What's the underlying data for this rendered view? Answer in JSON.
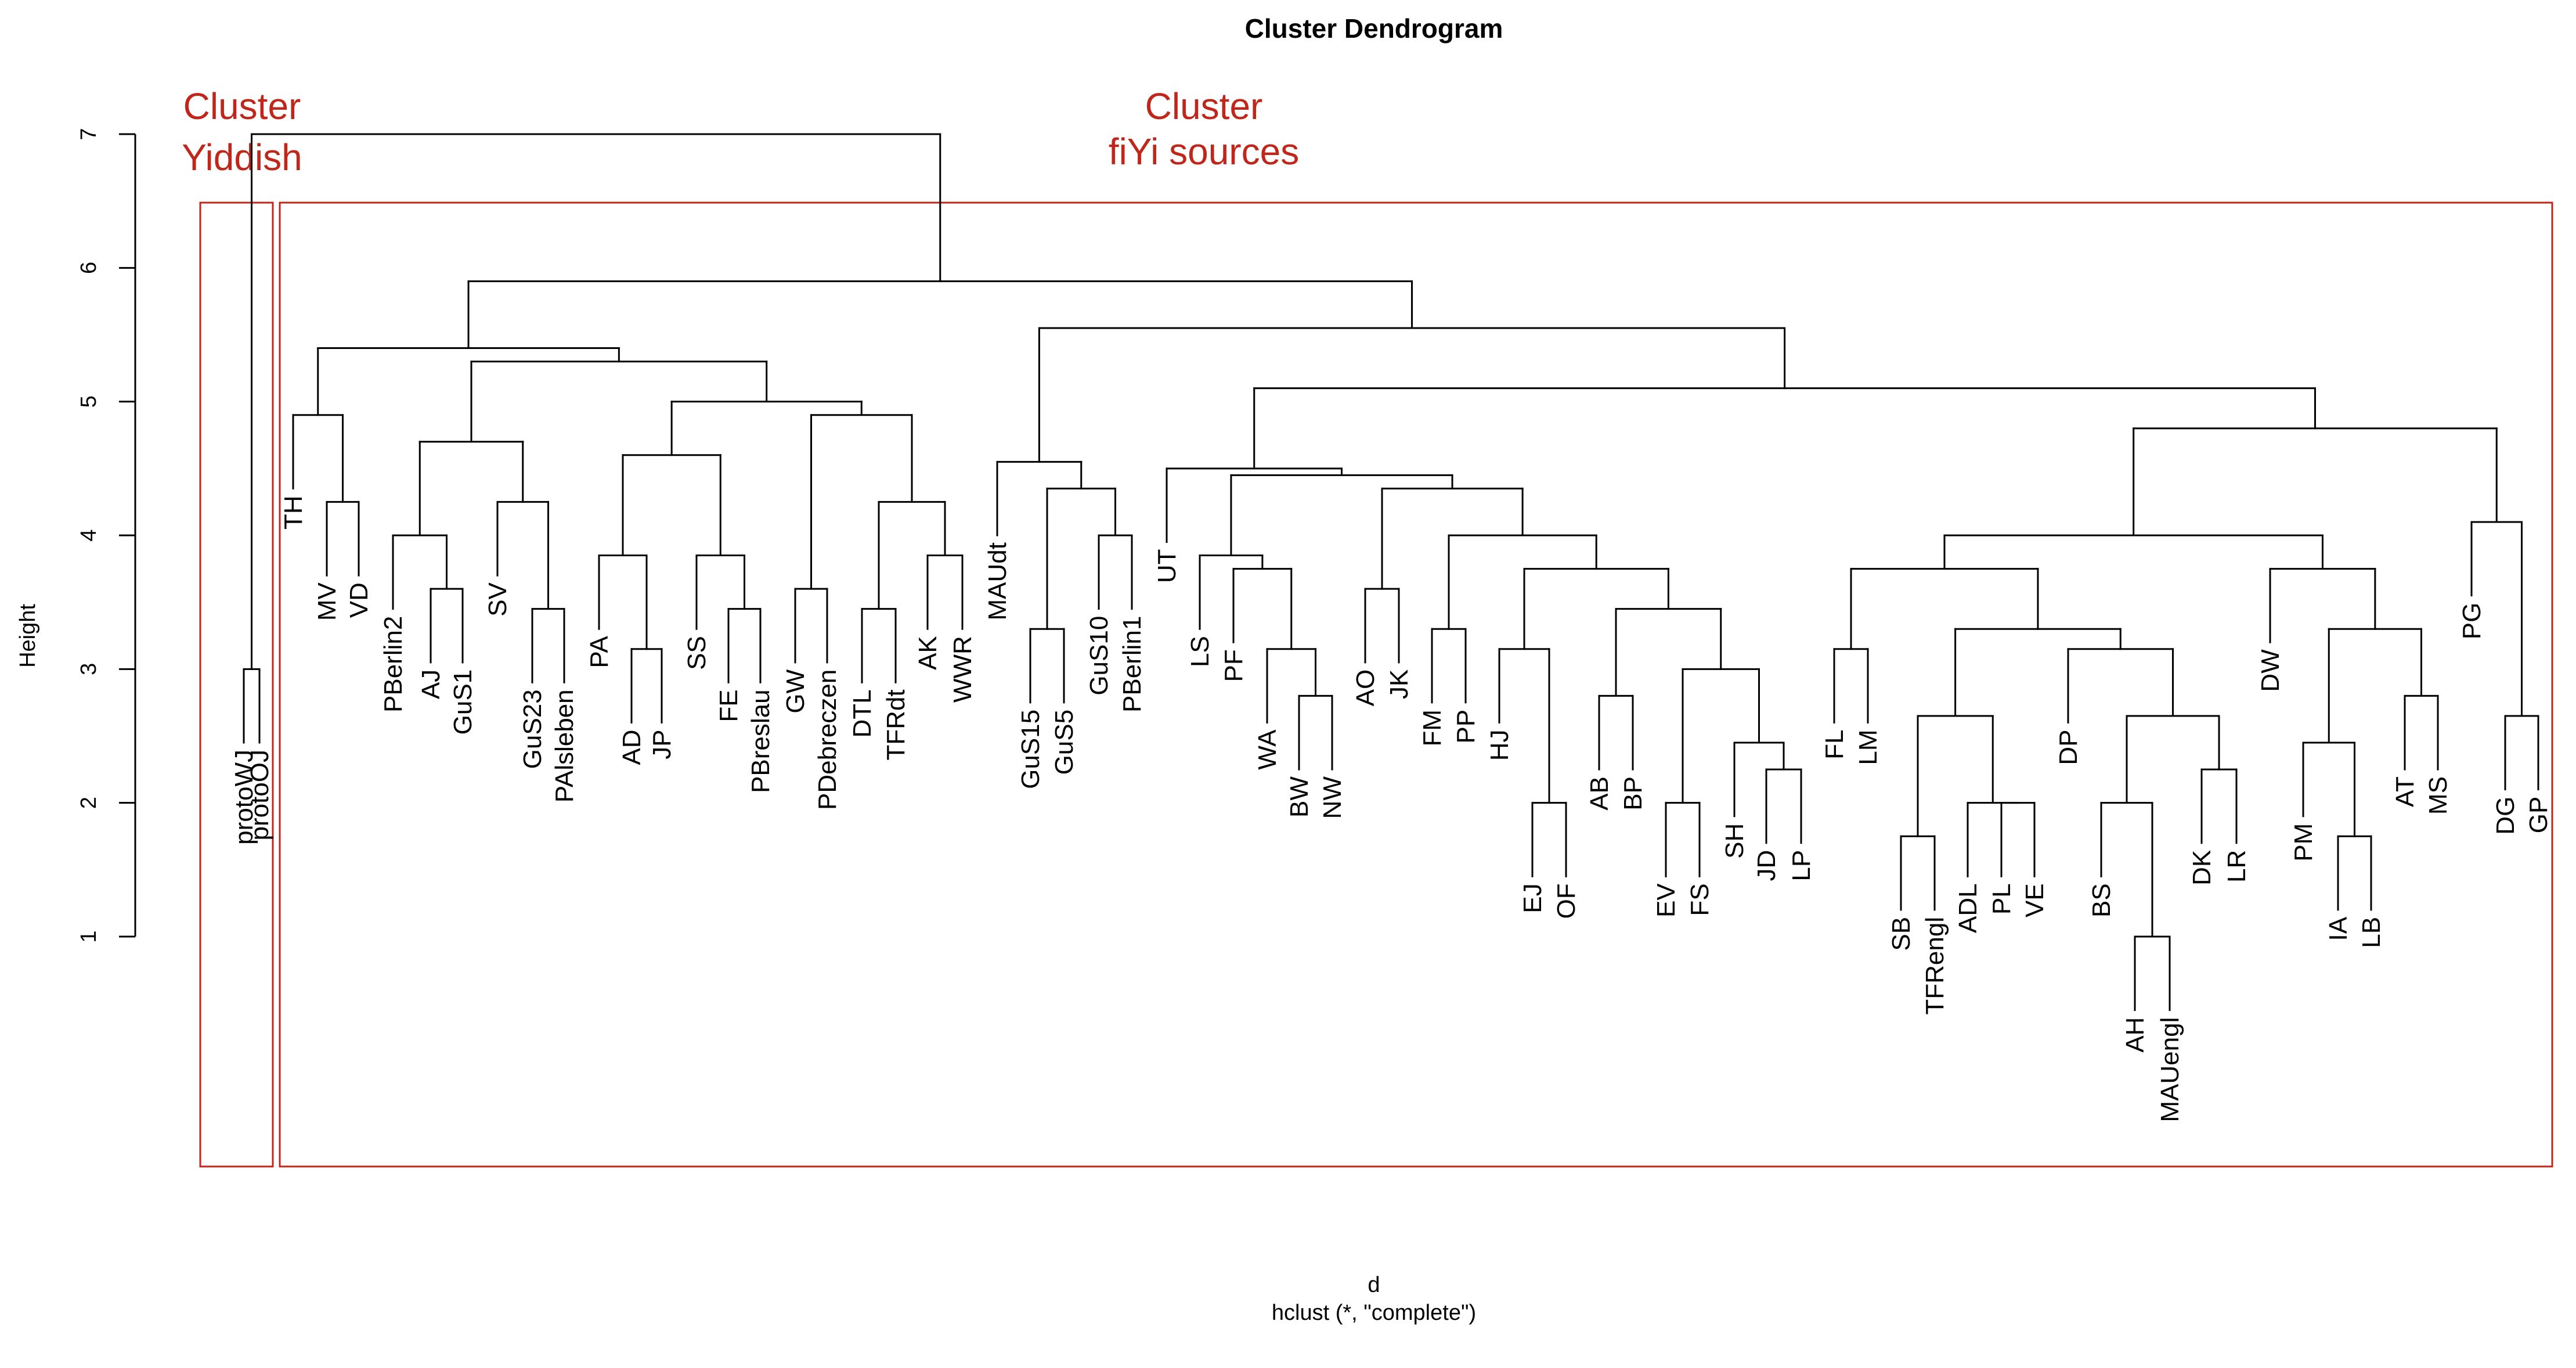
{
  "title": "Cluster Dendrogram",
  "ylabel": "Height",
  "xlabel": "d",
  "method": "hclust (*, \"complete\")",
  "colors": {
    "line": "#000000",
    "rect": "#c0271a",
    "annotation": "#c0271a"
  },
  "annotations": [
    {
      "lines": [
        "Cluster",
        "Yiddish"
      ]
    },
    {
      "lines": [
        "Cluster",
        "fiYi sources"
      ]
    }
  ],
  "chart_data": {
    "type": "dendrogram",
    "yticks": [
      1,
      2,
      3,
      4,
      5,
      6,
      7
    ],
    "ylim": [
      0,
      7
    ],
    "leaves": [
      "protoWJ",
      "protoOJ",
      "TH",
      "MV",
      "VD",
      "PBerlin2",
      "AJ",
      "GuS1",
      "SV",
      "GuS23",
      "PAlsleben",
      "PA",
      "AD",
      "JP",
      "SS",
      "FE",
      "PBreslau",
      "GW",
      "PDebreczen",
      "DTL",
      "TFRdt",
      "AK",
      "WWR",
      "MAUdt",
      "GuS15",
      "GuS5",
      "GuS10",
      "PBerlin1",
      "UT",
      "LS",
      "PF",
      "WA",
      "BW",
      "NW",
      "AO",
      "JK",
      "FM",
      "PP",
      "HJ",
      "EJ",
      "OF",
      "AB",
      "BP",
      "EV",
      "FS",
      "SH",
      "JD",
      "LP",
      "FL",
      "LM",
      "SB",
      "TFRengl",
      "ADL",
      "PL",
      "VE",
      "DP",
      "BS",
      "AH",
      "MAUengl",
      "DK",
      "LR",
      "DW",
      "PM",
      "IA",
      "LB",
      "AT",
      "MS",
      "PG",
      "DG",
      "GP"
    ],
    "tree": [
      "protoWJ",
      "protoOJ"
    ],
    "merges": [
      {
        "a": "protoWJ",
        "b": "protoOJ",
        "height": 3.0
      },
      {
        "a": "MV",
        "b": "VD",
        "height": 4.25
      },
      {
        "a": "TH",
        "b": "(MV,VD)",
        "height": 4.9
      },
      {
        "a": "AJ",
        "b": "GuS1",
        "height": 3.6
      },
      {
        "a": "PBerlin2",
        "b": "(AJ,GuS1)",
        "height": 4.0
      },
      {
        "a": "GuS23",
        "b": "PAlsleben",
        "height": 3.45
      },
      {
        "a": "SV",
        "b": "(GuS23,PAlsleben)",
        "height": 4.25
      },
      {
        "a": "(PBerlin2,AJ,GuS1)",
        "b": "(SV,GuS23,PAlsleben)",
        "height": 4.7
      },
      {
        "a": "AD",
        "b": "JP",
        "height": 3.15
      },
      {
        "a": "PA",
        "b": "(AD,JP)",
        "height": 3.85
      },
      {
        "a": "PBreslau",
        "b": "FE",
        "height": 3.45
      },
      {
        "a": "SS",
        "b": "(FE,PBreslau)",
        "height": 3.85
      },
      {
        "a": "(PA,AD,JP)",
        "b": "(SS,FE,PBreslau)",
        "height": 4.6
      },
      {
        "a": "GW",
        "b": "PDebreczen",
        "height": 3.6
      },
      {
        "a": "DTL",
        "b": "TFRdt",
        "height": 3.45
      },
      {
        "a": "AK",
        "b": "WWR",
        "height": 3.85
      },
      {
        "a": "(DTL,TFRdt)",
        "b": "(AK,WWR)",
        "height": 4.25
      },
      {
        "a": "(GW,PDebreczen)",
        "b": "(DTL,TFRdt,AK,WWR)",
        "height": 4.9
      },
      {
        "a": "(PA..PBreslau)",
        "b": "(GW..WWR)",
        "height": 5.0
      },
      {
        "a": "(PBerlin2..PAlsleben)",
        "b": "(PA..WWR)",
        "height": 5.3
      },
      {
        "a": "(TH,MV,VD)",
        "b": "(PBerlin2..WWR)",
        "height": 5.4
      },
      {
        "a": "GuS15",
        "b": "GuS5",
        "height": 3.3
      },
      {
        "a": "GuS10",
        "b": "PBerlin1",
        "height": 4.0
      },
      {
        "a": "(GuS15,GuS5)",
        "b": "(GuS10,PBerlin1)",
        "height": 4.35
      },
      {
        "a": "MAUdt",
        "b": "(GuS15,GuS5,GuS10,PBerlin1)",
        "height": 4.55
      },
      {
        "a": "BW",
        "b": "NW",
        "height": 2.8
      },
      {
        "a": "WA",
        "b": "(BW,NW)",
        "height": 3.15
      },
      {
        "a": "PF",
        "b": "(WA,BW,NW)",
        "height": 3.75
      },
      {
        "a": "LS",
        "b": "(PF,WA,BW,NW)",
        "height": 3.85
      },
      {
        "a": "AO",
        "b": "JK",
        "height": 3.6
      },
      {
        "a": "FM",
        "b": "PP",
        "height": 3.3
      },
      {
        "a": "EJ",
        "b": "OF",
        "height": 2.0
      },
      {
        "a": "HJ",
        "b": "(EJ,OF)",
        "height": 3.15
      },
      {
        "a": "AB",
        "b": "BP",
        "height": 2.8
      },
      {
        "a": "EV",
        "b": "FS",
        "height": 2.0
      },
      {
        "a": "JD",
        "b": "LP",
        "height": 2.25
      },
      {
        "a": "SH",
        "b": "(JD,LP)",
        "height": 2.45
      },
      {
        "a": "(EV,FS)",
        "b": "(SH,JD,LP)",
        "height": 3.0
      },
      {
        "a": "(AB,BP)",
        "b": "(EV..LP)",
        "height": 3.45
      },
      {
        "a": "(HJ,EJ,OF)",
        "b": "(AB..LP)",
        "height": 3.75
      },
      {
        "a": "(FM,PP)",
        "b": "(HJ..LP)",
        "height": 4.0
      },
      {
        "a": "(AO,JK)",
        "b": "(FM..LP)",
        "height": 4.35
      },
      {
        "a": "(LS..NW)",
        "b": "(AO..LP)",
        "height": 4.45
      },
      {
        "a": "UT",
        "b": "(LS..LP)",
        "height": 4.5
      },
      {
        "a": "FL",
        "b": "LM",
        "height": 3.15
      },
      {
        "a": "SB",
        "b": "TFRengl",
        "height": 1.75
      },
      {
        "a": "PL",
        "b": "VE",
        "height": 2.0
      },
      {
        "a": "ADL",
        "b": "(PL,VE)",
        "height": 2.0
      },
      {
        "a": "(SB,TFRengl)",
        "b": "(ADL,PL,VE)",
        "height": 2.65
      },
      {
        "a": "AH",
        "b": "MAUengl",
        "height": 1.0
      },
      {
        "a": "BS",
        "b": "(AH,MAUengl)",
        "height": 2.0
      },
      {
        "a": "DK",
        "b": "LR",
        "height": 2.25
      },
      {
        "a": "(BS,AH,MAUengl)",
        "b": "(DK,LR)",
        "height": 2.65
      },
      {
        "a": "DP",
        "b": "(BS..LR)",
        "height": 3.15
      },
      {
        "a": "(SB..VE)",
        "b": "(DP..LR)",
        "height": 3.3
      },
      {
        "a": "(FL,LM)",
        "b": "(SB..LR)",
        "height": 3.75
      },
      {
        "a": "IA",
        "b": "LB",
        "height": 1.75
      },
      {
        "a": "PM",
        "b": "(IA,LB)",
        "height": 2.45
      },
      {
        "a": "AT",
        "b": "MS",
        "height": 2.8
      },
      {
        "a": "(PM,IA,LB)",
        "b": "(AT,MS)",
        "height": 3.3
      },
      {
        "a": "DW",
        "b": "(PM..MS)",
        "height": 3.75
      },
      {
        "a": "(FL..LR)",
        "b": "(DW..MS)",
        "height": 4.0
      },
      {
        "a": "DG",
        "b": "GP",
        "height": 2.65
      },
      {
        "a": "PG",
        "b": "(DG,GP)",
        "height": 4.1
      },
      {
        "a": "(FL..MS)",
        "b": "(PG,DG,GP)",
        "height": 4.8
      },
      {
        "a": "(UT..LP)",
        "b": "(FL..GP)",
        "height": 5.1
      },
      {
        "a": "(MAUdt..PBerlin1)",
        "b": "(UT..GP)",
        "height": 5.55
      },
      {
        "a": "(TH..WWR)",
        "b": "(MAUdt..GP)",
        "height": 5.9
      },
      {
        "a": "(protoWJ,protoOJ)",
        "b": "(TH..GP)",
        "height": 7.0
      }
    ]
  }
}
